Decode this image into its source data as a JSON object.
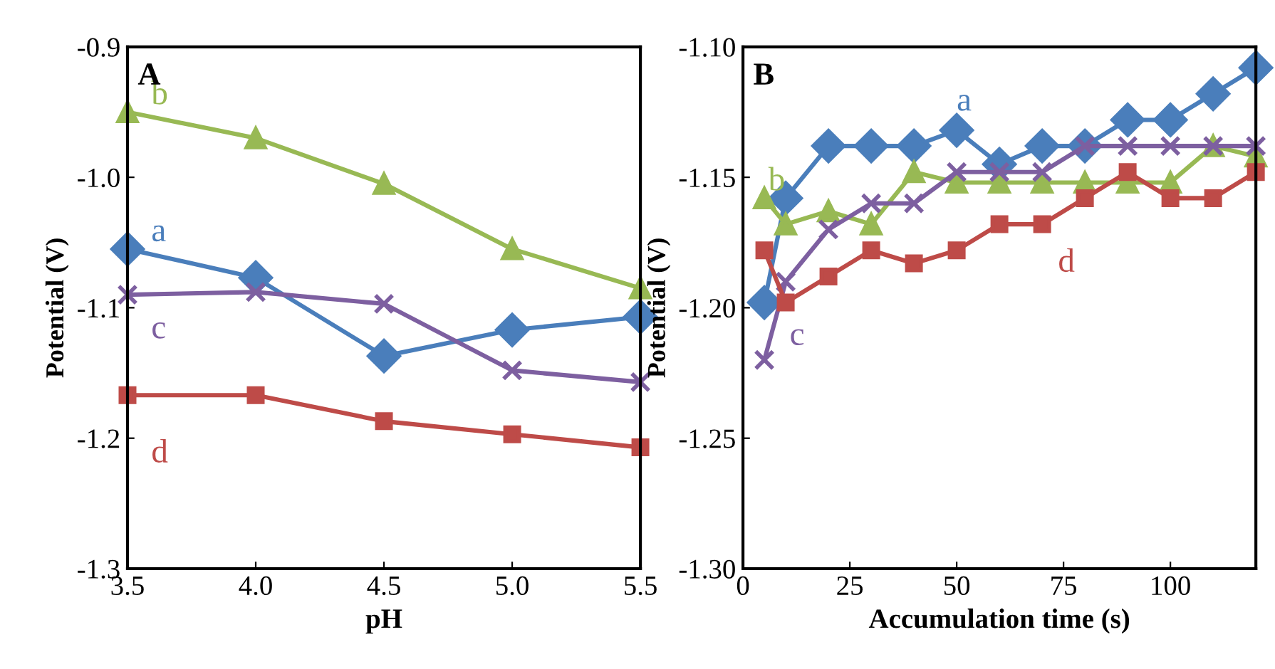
{
  "chart_data": [
    {
      "type": "line",
      "xlabel": "pH",
      "ylabel": "Potential (V)",
      "annotations": [
        "A"
      ],
      "x": [
        3.5,
        4.0,
        4.5,
        5.0,
        5.5
      ],
      "xlim": [
        3.5,
        5.5
      ],
      "xticks": [
        {
          "value": 3.5,
          "label": "3.5"
        },
        {
          "value": 4.0,
          "label": "4.0"
        },
        {
          "value": 4.5,
          "label": "4.5"
        },
        {
          "value": 5.0,
          "label": "5.0"
        },
        {
          "value": 5.5,
          "label": "5.5"
        }
      ],
      "ylim": [
        -1.3,
        -0.9
      ],
      "yticks": [
        {
          "value": -1.3,
          "label": "-1.3"
        },
        {
          "value": -1.2,
          "label": "-1.2"
        },
        {
          "value": -1.1,
          "label": "-1.1"
        },
        {
          "value": -1.0,
          "label": "-1.0"
        },
        {
          "value": -0.9,
          "label": "-0.9"
        }
      ],
      "grid": false,
      "legend": false,
      "series": [
        {
          "name": "a",
          "color": "#4a7ebb",
          "marker": "diamond",
          "values": [
            -1.055,
            -1.077,
            -1.137,
            -1.117,
            -1.107
          ]
        },
        {
          "name": "b",
          "color": "#98b954",
          "marker": "triangle",
          "values": [
            -0.95,
            -0.97,
            -1.005,
            -1.055,
            -1.085
          ]
        },
        {
          "name": "c",
          "color": "#7d5fa0",
          "marker": "cross",
          "values": [
            -1.09,
            -1.088,
            -1.097,
            -1.148,
            -1.157
          ]
        },
        {
          "name": "d",
          "color": "#be4b48",
          "marker": "square",
          "values": [
            -1.167,
            -1.167,
            -1.187,
            -1.197,
            -1.207
          ]
        }
      ]
    },
    {
      "type": "line",
      "xlabel": "Accumulation time (s)",
      "ylabel": "Potential (V)",
      "annotations": [
        "B"
      ],
      "x": [
        5,
        10,
        20,
        30,
        40,
        50,
        60,
        70,
        80,
        90,
        100,
        110,
        120
      ],
      "xlim": [
        0,
        120
      ],
      "xticks": [
        0,
        25,
        50,
        75,
        100
      ],
      "ylim": [
        -1.3,
        -1.1
      ],
      "yticks": [
        {
          "value": -1.3,
          "label": "-1.30"
        },
        {
          "value": -1.25,
          "label": "-1.25"
        },
        {
          "value": -1.2,
          "label": "-1.20"
        },
        {
          "value": -1.15,
          "label": "-1.15"
        },
        {
          "value": -1.1,
          "label": "-1.10"
        }
      ],
      "grid": false,
      "legend": false,
      "series": [
        {
          "name": "a",
          "color": "#4a7ebb",
          "marker": "diamond",
          "values": [
            -1.198,
            -1.158,
            -1.138,
            -1.138,
            -1.138,
            -1.132,
            -1.145,
            -1.138,
            -1.138,
            -1.128,
            -1.128,
            -1.118,
            -1.108
          ]
        },
        {
          "name": "b",
          "color": "#98b954",
          "marker": "triangle",
          "values": [
            -1.158,
            -1.168,
            -1.163,
            -1.168,
            -1.148,
            -1.152,
            -1.152,
            -1.152,
            -1.152,
            -1.152,
            -1.152,
            -1.138,
            -1.142
          ]
        },
        {
          "name": "c",
          "color": "#7d5fa0",
          "marker": "cross",
          "values": [
            -1.22,
            -1.19,
            -1.17,
            -1.16,
            -1.16,
            -1.148,
            -1.148,
            -1.148,
            -1.138,
            -1.138,
            -1.138,
            -1.138,
            -1.138
          ]
        },
        {
          "name": "d",
          "color": "#be4b48",
          "marker": "square",
          "values": [
            -1.178,
            -1.198,
            -1.188,
            -1.178,
            -1.183,
            -1.178,
            -1.168,
            -1.168,
            -1.158,
            -1.148,
            -1.158,
            -1.158,
            -1.148
          ]
        }
      ]
    }
  ]
}
